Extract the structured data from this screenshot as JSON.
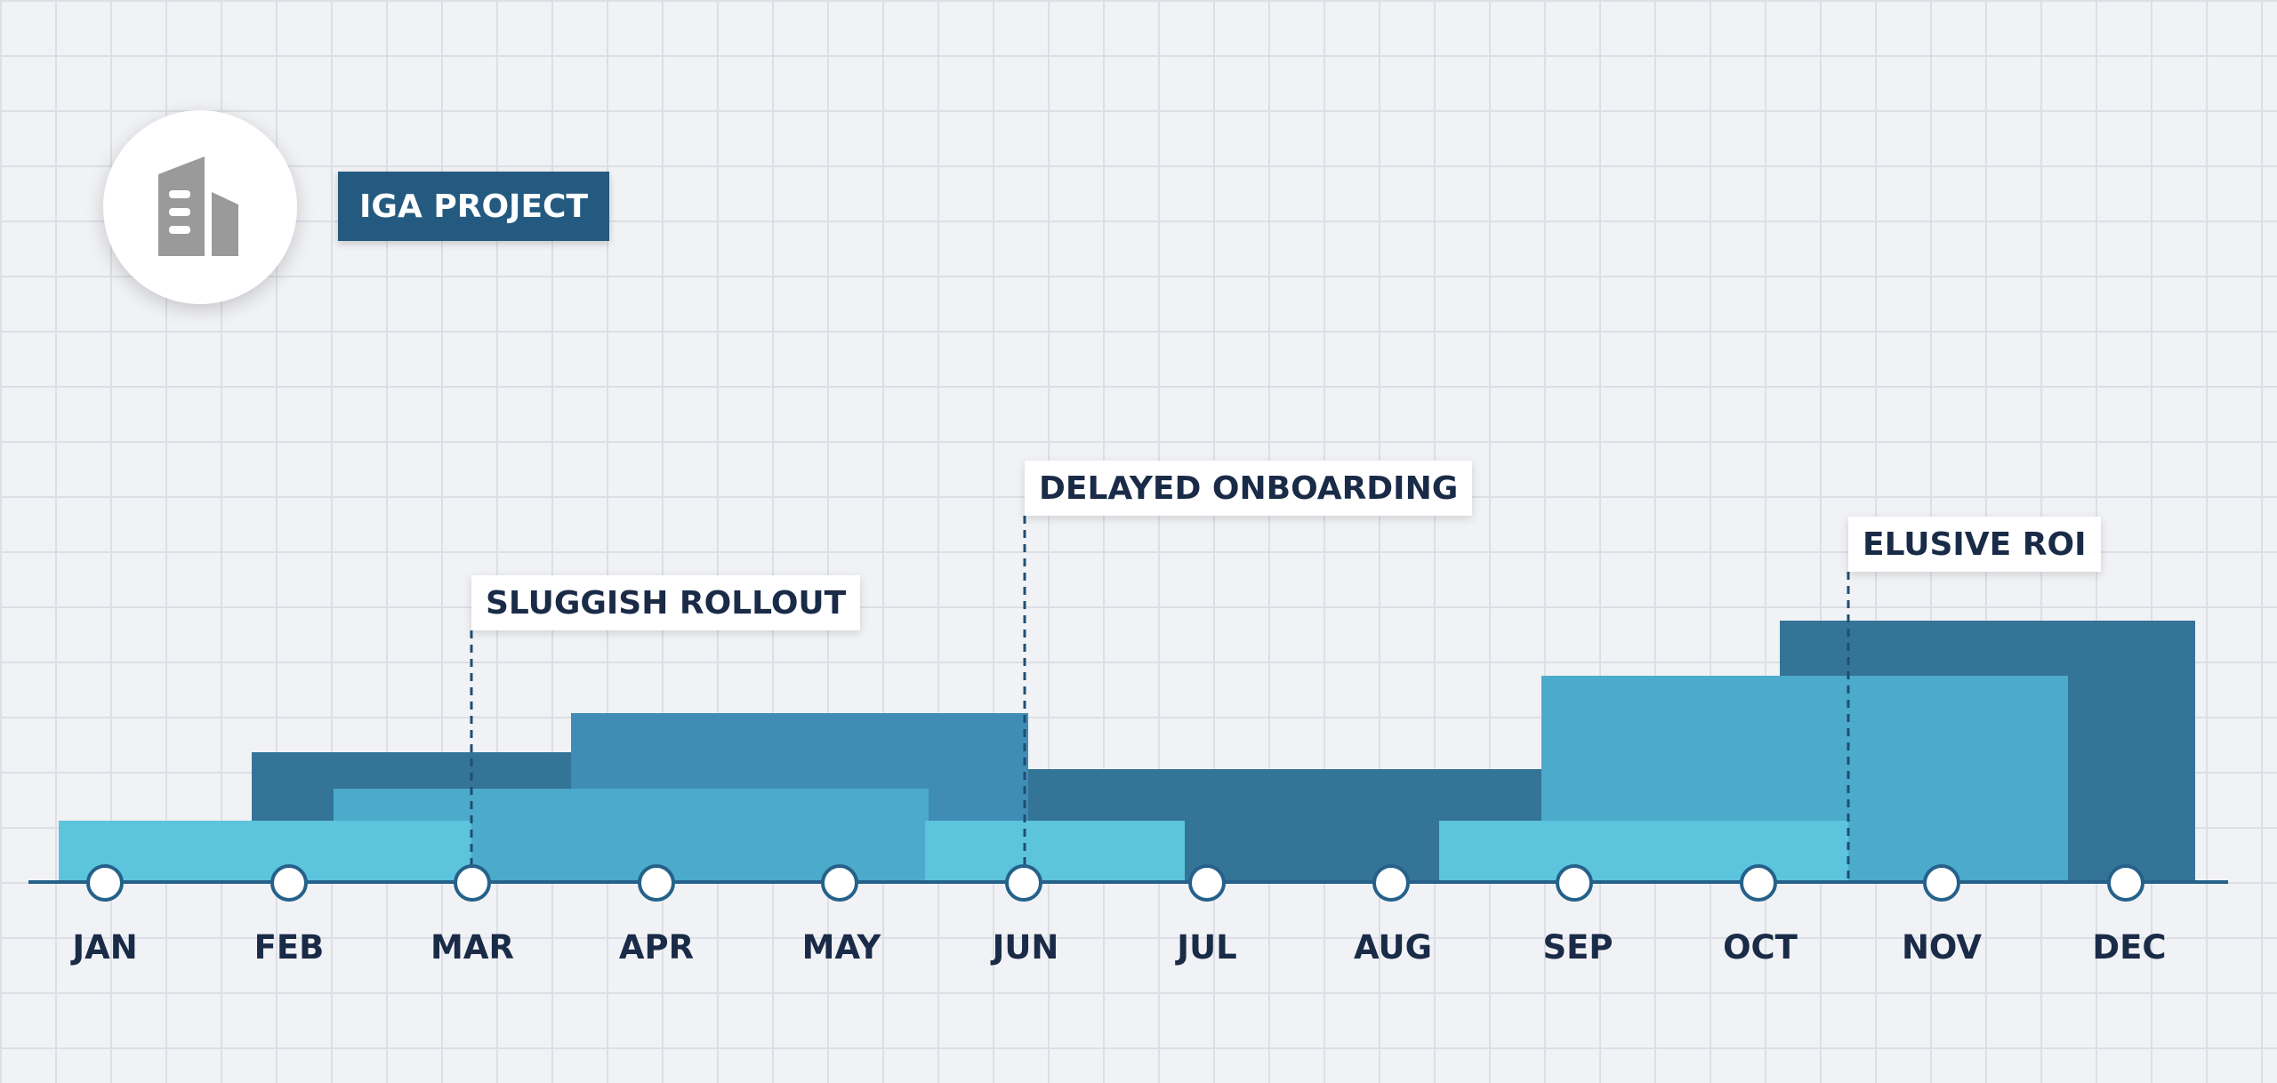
{
  "title": "IGA PROJECT",
  "icon": "building-icon",
  "colors": {
    "background": "#f1f2f5",
    "title_bg": "#245a80",
    "dark": "#347497",
    "mid": "#3f8db5",
    "medium_light": "#4caacb",
    "light": "#5cc4dd",
    "baseline": "#25618a",
    "text": "#1a2b48"
  },
  "months": [
    "JAN",
    "FEB",
    "MAR",
    "APR",
    "MAY",
    "JUN",
    "JUL",
    "AUG",
    "SEP",
    "OCT",
    "NOV",
    "DEC"
  ],
  "callouts": {
    "sluggish": "SLUGGISH ROLLOUT",
    "delayed": "DELAYED ONBOARDING",
    "roi": "ELUSIVE ROI"
  },
  "chart_data": {
    "type": "area",
    "categories": [
      "JAN",
      "FEB",
      "MAR",
      "APR",
      "MAY",
      "JUN",
      "JUL",
      "AUG",
      "SEP",
      "OCT",
      "NOV",
      "DEC"
    ],
    "annotations": [
      {
        "label": "SLUGGISH ROLLOUT",
        "month": "MAR"
      },
      {
        "label": "DELAYED ONBOARDING",
        "month": "JUN"
      },
      {
        "label": "ELUSIVE ROI",
        "month": "OCT-NOV"
      }
    ]
  }
}
